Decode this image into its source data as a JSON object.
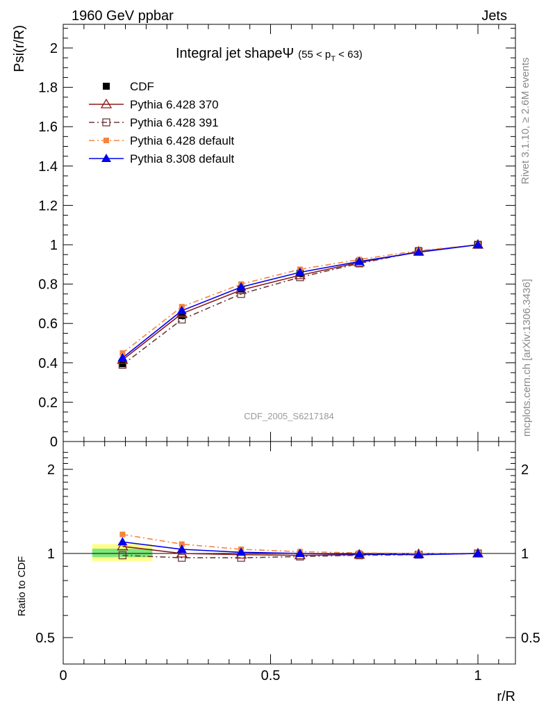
{
  "header": {
    "left": "1960 GeV ppbar",
    "right": "Jets"
  },
  "side_texts": {
    "rivet": "Rivet 3.1.10, ≥ 2.6M events",
    "mcplots": "mcplots.cern.ch [arXiv:1306.3436]"
  },
  "watermark": "CDF_2005_S6217184",
  "colors": {
    "cdf": "#000000",
    "p370": "#8b1a1a",
    "p391": "#6b3a3a",
    "p6def": "#f5843c",
    "p8def": "#0000ee",
    "band_green": "#7ce87c",
    "band_yellow": "#ffff88"
  },
  "chart_data": [
    {
      "type": "line",
      "title": "Integral jet shapeΨ",
      "title_suffix_parts": [
        "(55 < p",
        "T",
        " < 63)"
      ],
      "ylabel": "Psi(r/R)",
      "xlim": [
        0,
        1.1
      ],
      "ylim": [
        0,
        2.13
      ],
      "yticks": [
        "0",
        "0.2",
        "0.4",
        "0.6",
        "0.8",
        "1",
        "1.2",
        "1.4",
        "1.6",
        "1.8",
        "2"
      ],
      "x": [
        0.143,
        0.286,
        0.429,
        0.571,
        0.714,
        0.857,
        1.0
      ],
      "series": [
        {
          "name": "CDF",
          "key": "cdf",
          "marker": "square-filled",
          "dash": "none",
          "values": [
            0.395,
            0.64,
            0.775,
            0.855,
            0.915,
            0.97,
            1.0
          ]
        },
        {
          "name": "Pythia 6.428 370",
          "key": "p370",
          "marker": "triangle-open",
          "dash": "solid",
          "values": [
            0.415,
            0.65,
            0.77,
            0.845,
            0.91,
            0.965,
            1.0
          ]
        },
        {
          "name": "Pythia 6.428 391",
          "key": "p391",
          "marker": "square-open",
          "dash": "dashdot",
          "values": [
            0.39,
            0.62,
            0.75,
            0.835,
            0.905,
            0.965,
            1.0
          ]
        },
        {
          "name": "Pythia 6.428 default",
          "key": "p6def",
          "marker": "square-small",
          "dash": "dashdot",
          "values": [
            0.45,
            0.685,
            0.8,
            0.875,
            0.925,
            0.97,
            1.0
          ]
        },
        {
          "name": "Pythia 8.308 default",
          "key": "p8def",
          "marker": "triangle-filled",
          "dash": "solid",
          "values": [
            0.425,
            0.665,
            0.785,
            0.86,
            0.915,
            0.962,
            1.0
          ]
        }
      ]
    },
    {
      "type": "line",
      "ylabel": "Ratio to CDF",
      "xlabel": "r/R",
      "xlim": [
        0,
        1.1
      ],
      "ylim": [
        0.35,
        2.35
      ],
      "yticks": [
        "0.5",
        "1",
        "2"
      ],
      "xticks": [
        "0",
        "0.5",
        "1"
      ],
      "x": [
        0.143,
        0.286,
        0.429,
        0.571,
        0.714,
        0.857,
        1.0
      ],
      "bands": {
        "x_range": [
          0.07,
          0.215
        ],
        "yellow": [
          0.94,
          1.08
        ],
        "green": [
          0.97,
          1.04
        ]
      },
      "series": [
        {
          "key": "p370",
          "values": [
            1.06,
            1.0,
            0.99,
            0.985,
            0.99,
            0.995,
            1.0
          ]
        },
        {
          "key": "p391",
          "values": [
            0.985,
            0.965,
            0.965,
            0.975,
            0.985,
            0.99,
            1.0
          ]
        },
        {
          "key": "p6def",
          "values": [
            1.17,
            1.08,
            1.035,
            1.015,
            1.005,
            1.0,
            1.0
          ]
        },
        {
          "key": "p8def",
          "values": [
            1.1,
            1.035,
            1.01,
            1.0,
            0.995,
            0.99,
            1.0
          ]
        }
      ]
    }
  ]
}
